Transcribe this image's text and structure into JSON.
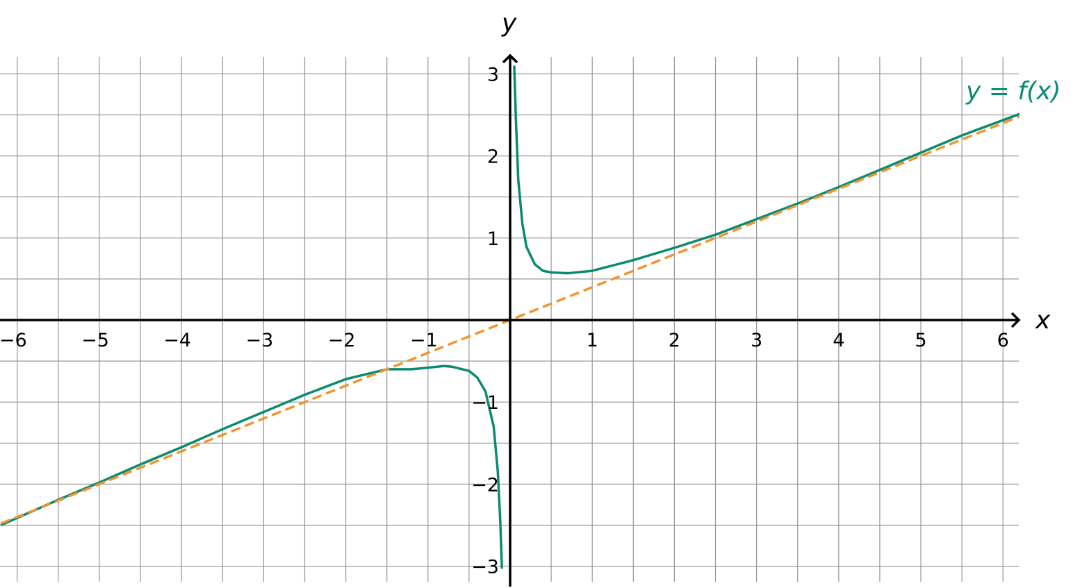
{
  "chart_data": {
    "type": "line",
    "xlabel": "x",
    "ylabel": "y",
    "xlim": [
      -6.2,
      6.2
    ],
    "ylim": [
      -3.2,
      3.2
    ],
    "grid": true,
    "grid_step": 0.5,
    "x_ticks": [
      {
        "value": -6,
        "label": "−6"
      },
      {
        "value": -5,
        "label": "−5"
      },
      {
        "value": -4,
        "label": "−4"
      },
      {
        "value": -3,
        "label": "−3"
      },
      {
        "value": -2,
        "label": "−2"
      },
      {
        "value": -1,
        "label": "−1"
      },
      {
        "value": 1,
        "label": "1"
      },
      {
        "value": 2,
        "label": "2"
      },
      {
        "value": 3,
        "label": "3"
      },
      {
        "value": 4,
        "label": "4"
      },
      {
        "value": 5,
        "label": "5"
      },
      {
        "value": 6,
        "label": "6"
      }
    ],
    "y_ticks": [
      {
        "value": 3,
        "label": "3"
      },
      {
        "value": 2,
        "label": "2"
      },
      {
        "value": 1,
        "label": "1"
      },
      {
        "value": -1,
        "label": "−1"
      },
      {
        "value": -2,
        "label": "−2"
      },
      {
        "value": -3,
        "label": "−3"
      }
    ],
    "series": [
      {
        "name": "y = f(x)",
        "style": "solid",
        "color": "#0a8a70",
        "points": [
          [
            -6.2,
            -2.5
          ],
          [
            -5.5,
            -2.19
          ],
          [
            -5,
            -1.98
          ],
          [
            -4.5,
            -1.76
          ],
          [
            -4,
            -1.55
          ],
          [
            -3.5,
            -1.33
          ],
          [
            -3,
            -1.12
          ],
          [
            -2.5,
            -0.91
          ],
          [
            -2,
            -0.72
          ],
          [
            -1.5,
            -0.6
          ],
          [
            -1.2,
            -0.6
          ],
          [
            -1,
            -0.58
          ],
          [
            -0.8,
            -0.56
          ],
          [
            -0.7,
            -0.57
          ],
          [
            -0.5,
            -0.62
          ],
          [
            -0.4,
            -0.7
          ],
          [
            -0.3,
            -0.87
          ],
          [
            -0.2,
            -1.3
          ],
          [
            -0.15,
            -1.85
          ],
          [
            -0.12,
            -2.45
          ],
          [
            -0.1,
            -3.03
          ]
        ]
      },
      {
        "name": "y = f(x)",
        "style": "solid",
        "color": "#0a8a70",
        "points": [
          [
            0.05,
            3.1
          ],
          [
            0.07,
            2.45
          ],
          [
            0.1,
            1.7
          ],
          [
            0.15,
            1.17
          ],
          [
            0.2,
            0.89
          ],
          [
            0.3,
            0.68
          ],
          [
            0.4,
            0.6
          ],
          [
            0.5,
            0.58
          ],
          [
            0.7,
            0.57
          ],
          [
            1,
            0.6
          ],
          [
            1.5,
            0.73
          ],
          [
            2,
            0.88
          ],
          [
            2.5,
            1.04
          ],
          [
            3,
            1.23
          ],
          [
            3.5,
            1.42
          ],
          [
            4,
            1.62
          ],
          [
            4.5,
            1.83
          ],
          [
            5,
            2.04
          ],
          [
            5.5,
            2.25
          ],
          [
            6.2,
            2.51
          ]
        ]
      },
      {
        "name": "",
        "style": "dashed",
        "color": "#f0962d",
        "points": [
          [
            -6.2,
            -2.48
          ],
          [
            6.2,
            2.48
          ]
        ]
      }
    ],
    "curve_label": "y = f(x)",
    "colors": {
      "curve": "#0a8a70",
      "asymptote": "#f0962d",
      "grid": "#999999",
      "axes": "#000000"
    }
  }
}
